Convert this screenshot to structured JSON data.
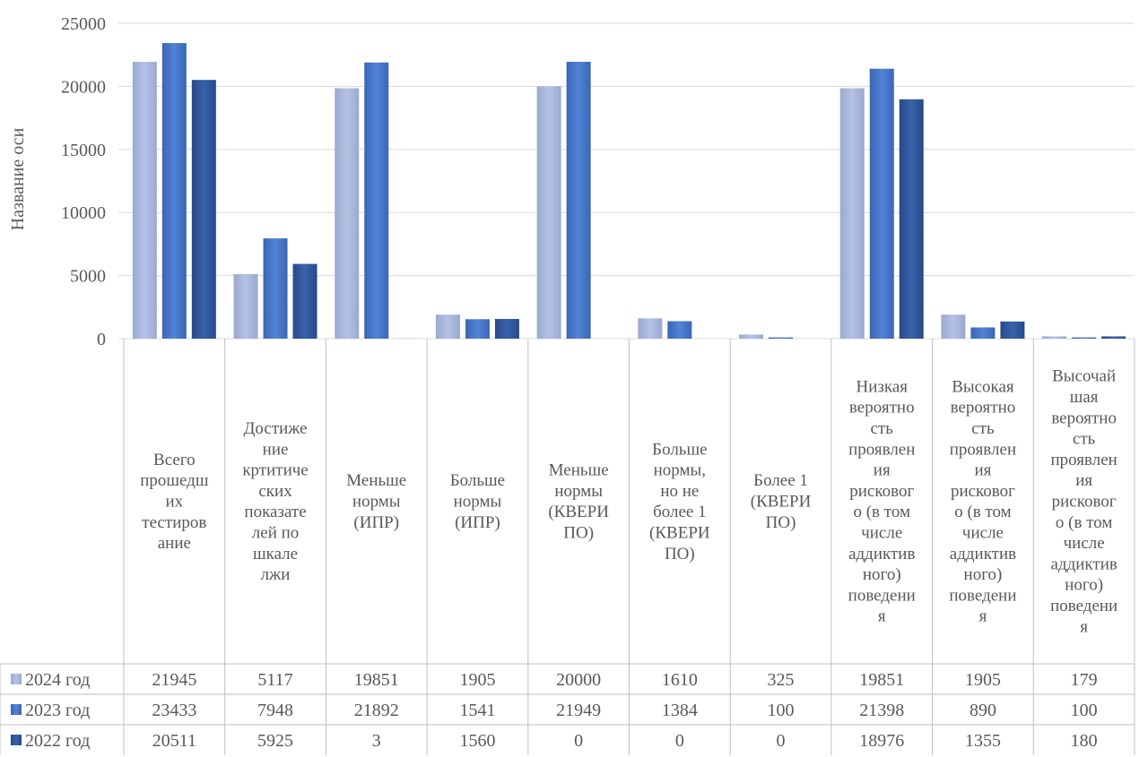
{
  "chart_data": {
    "type": "bar",
    "ylabel": "Название оси",
    "ylim": [
      0,
      25000
    ],
    "yticks": [
      0,
      5000,
      10000,
      15000,
      20000,
      25000
    ],
    "grid": true,
    "categories": [
      "Всего прошедших тестирование",
      "Достижение кртитических показателей по шкале лжи",
      "Меньше нормы (ИПР)",
      "Больше нормы (ИПР)",
      "Меньше нормы (КВЕРИ ПО)",
      "Больше нормы, но не более 1 (КВЕРИ ПО)",
      "Более 1 (КВЕРИ ПО)",
      "Низкая вероятность проявления рискового (в том числе аддиктивного) поведения",
      "Высокая вероятность проявления рискового (в том числе аддиктивного) поведения",
      "Высочайшая вероятность проявления рискового (в том числе аддиктивного) поведения"
    ],
    "category_lines": [
      [
        "Всего",
        "прошедш",
        "их",
        "тестиров",
        "ание"
      ],
      [
        "Достиже",
        "ние",
        "кртитиче",
        "ских",
        "показате",
        "лей по",
        "шкале",
        "лжи"
      ],
      [
        "Меньше",
        "нормы",
        "(ИПР)"
      ],
      [
        "Больше",
        "нормы",
        "(ИПР)"
      ],
      [
        "Меньше",
        "нормы",
        "(КВЕРИ",
        "ПО)"
      ],
      [
        "Больше",
        "нормы,",
        "но не",
        "более 1",
        "(КВЕРИ",
        "ПО)"
      ],
      [
        "Более 1",
        "(КВЕРИ",
        "ПО)"
      ],
      [
        "Низкая",
        "вероятно",
        "сть",
        "проявлен",
        "ия",
        "рисковог",
        "о (в том",
        "числе",
        "аддиктив",
        "ного)",
        "поведени",
        "я"
      ],
      [
        "Высокая",
        "вероятно",
        "сть",
        "проявлен",
        "ия",
        "рисковог",
        "о (в том",
        "числе",
        "аддиктив",
        "ного)",
        "поведени",
        "я"
      ],
      [
        "Высочай",
        "шая",
        "вероятно",
        "сть",
        "проявлен",
        "ия",
        "рисковог",
        "о (в том",
        "числе",
        "аддиктив",
        "ного)",
        "поведени",
        "я"
      ]
    ],
    "series": [
      {
        "name": "2024 год",
        "color": "#a9b8dc",
        "values": [
          21945,
          5117,
          19851,
          1905,
          20000,
          1610,
          325,
          19851,
          1905,
          179
        ]
      },
      {
        "name": "2023 год",
        "color": "#4472c4",
        "values": [
          23433,
          7948,
          21892,
          1541,
          21949,
          1384,
          100,
          21398,
          890,
          100
        ]
      },
      {
        "name": "2022 год",
        "color": "#2f5597",
        "values": [
          20511,
          5925,
          3,
          1560,
          0,
          0,
          0,
          18976,
          1355,
          180
        ]
      }
    ]
  }
}
